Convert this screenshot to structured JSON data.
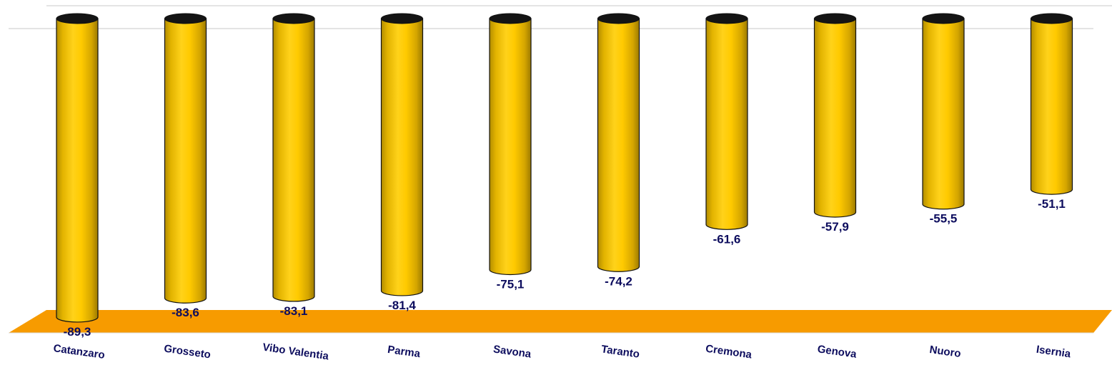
{
  "chart_data": {
    "type": "bar",
    "categories": [
      "Catanzaro",
      "Grosseto",
      "Vibo Valentia",
      "Parma",
      "Savona",
      "Taranto",
      "Cremona",
      "Genova",
      "Nuoro",
      "Isernia"
    ],
    "values": [
      -89.3,
      -83.6,
      -83.1,
      -81.4,
      -75.1,
      -74.2,
      -61.6,
      -57.9,
      -55.5,
      -51.1
    ],
    "value_labels": [
      "-89,3",
      "-83,6",
      "-83,1",
      "-81,4",
      "-75,1",
      "-74,2",
      "-61,6",
      "-57,9",
      "-55,5",
      "-51,1"
    ],
    "title": "",
    "xlabel": "",
    "ylabel": "",
    "ylim": [
      -100,
      0
    ],
    "grid": false,
    "colors": {
      "bar": "#f2c200",
      "bar_light": "#ffe04a",
      "bar_dark": "#b38d00",
      "floor": "#f79b00",
      "label": "#0d0d5e",
      "outline": "#111111"
    }
  }
}
